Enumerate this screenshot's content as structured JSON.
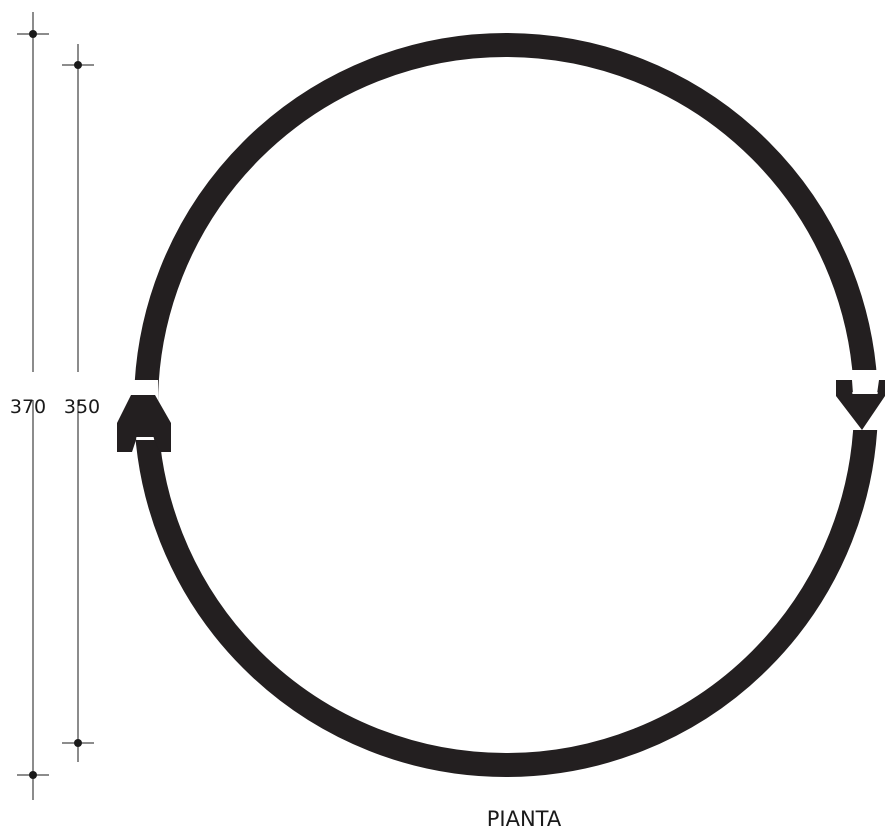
{
  "drawing": {
    "title": "PIANTA",
    "dimensions": {
      "outer": "370",
      "inner": "350"
    }
  }
}
